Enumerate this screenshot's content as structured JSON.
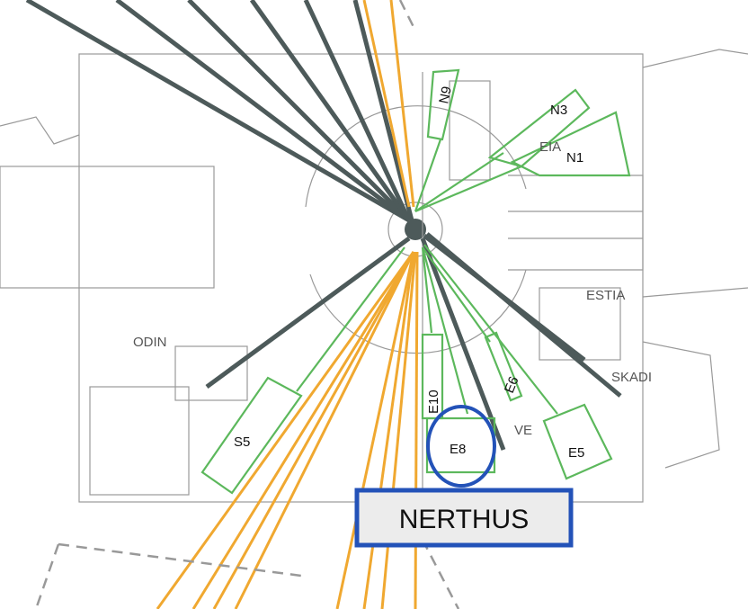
{
  "instruments": [
    "EIA",
    "ESTIA",
    "ODIN",
    "SKADI",
    "VE"
  ],
  "sectors": [
    "N9",
    "N3",
    "N1",
    "E10",
    "E6",
    "E8",
    "E5",
    "S5"
  ],
  "highlight": "NERTHUS"
}
